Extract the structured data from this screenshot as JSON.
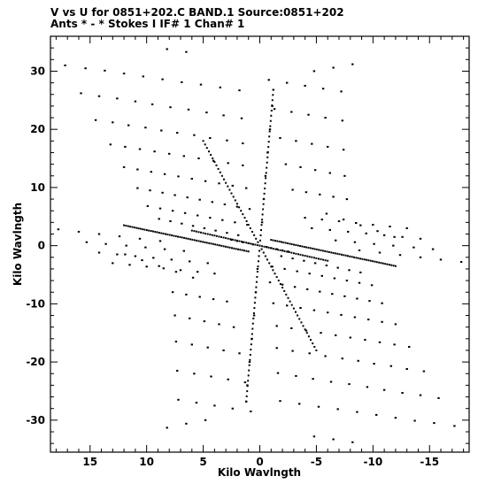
{
  "header": {
    "line1": "V vs U for 0851+202.C BAND.1   Source:0851+202",
    "line2": "Ants * - *    Stokes I   IF# 1   Chan# 1"
  },
  "chart_data": {
    "type": "scatter",
    "xlabel": "Kilo Wavlngth",
    "ylabel": "Kilo Wavlngth",
    "xlim": [
      18.5,
      -18.5
    ],
    "ylim": [
      -35.5,
      36
    ],
    "x_ticks": [
      15,
      10,
      5,
      0,
      -5,
      -10,
      -15
    ],
    "x_tick_labels": [
      "15",
      "10",
      "5",
      "0",
      "-5",
      "-10",
      "-15"
    ],
    "y_ticks": [
      30,
      20,
      10,
      0,
      -10,
      -20,
      -30
    ],
    "y_tick_labels": [
      "30",
      "20",
      "10",
      "0",
      "-10",
      "-20",
      "-30"
    ],
    "grid": false,
    "marker_color": "#000000",
    "points": [
      [
        17.2,
        31.0
      ],
      [
        15.4,
        30.5
      ],
      [
        13.7,
        30.1
      ],
      [
        12.0,
        29.6
      ],
      [
        10.3,
        29.1
      ],
      [
        8.6,
        28.6
      ],
      [
        6.9,
        28.1
      ],
      [
        5.2,
        27.7
      ],
      [
        3.5,
        27.2
      ],
      [
        1.8,
        26.7
      ],
      [
        15.8,
        26.2
      ],
      [
        14.2,
        25.7
      ],
      [
        12.6,
        25.3
      ],
      [
        11.0,
        24.8
      ],
      [
        9.5,
        24.3
      ],
      [
        7.9,
        23.8
      ],
      [
        6.3,
        23.4
      ],
      [
        4.7,
        22.9
      ],
      [
        3.2,
        22.4
      ],
      [
        1.6,
        21.9
      ],
      [
        14.5,
        21.6
      ],
      [
        13.0,
        21.2
      ],
      [
        11.6,
        20.7
      ],
      [
        10.1,
        20.3
      ],
      [
        8.7,
        19.8
      ],
      [
        7.3,
        19.4
      ],
      [
        5.8,
        19.0
      ],
      [
        4.4,
        18.5
      ],
      [
        2.9,
        18.1
      ],
      [
        1.5,
        17.6
      ],
      [
        13.2,
        17.4
      ],
      [
        11.9,
        17.0
      ],
      [
        10.6,
        16.6
      ],
      [
        9.3,
        16.2
      ],
      [
        8.0,
        15.8
      ],
      [
        6.7,
        15.4
      ],
      [
        5.4,
        15.0
      ],
      [
        4.1,
        14.6
      ],
      [
        2.8,
        14.2
      ],
      [
        1.5,
        13.8
      ],
      [
        12.0,
        13.5
      ],
      [
        10.8,
        13.1
      ],
      [
        9.6,
        12.7
      ],
      [
        8.4,
        12.3
      ],
      [
        7.2,
        11.9
      ],
      [
        6.0,
        11.5
      ],
      [
        4.8,
        11.1
      ],
      [
        3.6,
        10.7
      ],
      [
        2.4,
        10.3
      ],
      [
        1.2,
        9.9
      ],
      [
        10.8,
        9.9
      ],
      [
        9.7,
        9.5
      ],
      [
        8.6,
        9.1
      ],
      [
        7.5,
        8.7
      ],
      [
        6.4,
        8.3
      ],
      [
        5.3,
        7.9
      ],
      [
        4.2,
        7.5
      ],
      [
        3.1,
        7.1
      ],
      [
        2.0,
        6.7
      ],
      [
        0.9,
        6.3
      ],
      [
        9.9,
        6.8
      ],
      [
        8.8,
        6.4
      ],
      [
        7.7,
        6.0
      ],
      [
        6.6,
        5.6
      ],
      [
        5.5,
        5.2
      ],
      [
        4.4,
        4.8
      ],
      [
        3.3,
        4.4
      ],
      [
        2.2,
        4.0
      ],
      [
        1.1,
        3.6
      ],
      [
        8.9,
        4.6
      ],
      [
        7.9,
        4.2
      ],
      [
        6.9,
        3.8
      ],
      [
        5.9,
        3.4
      ],
      [
        4.9,
        3.0
      ],
      [
        3.9,
        2.6
      ],
      [
        2.9,
        2.2
      ],
      [
        1.9,
        1.8
      ],
      [
        17.8,
        2.8
      ],
      [
        16.0,
        2.4
      ],
      [
        14.2,
        2.0
      ],
      [
        12.4,
        1.6
      ],
      [
        10.6,
        1.2
      ],
      [
        8.8,
        0.8
      ],
      [
        15.3,
        0.6
      ],
      [
        13.6,
        0.3
      ],
      [
        11.8,
        0.0
      ],
      [
        10.1,
        -0.3
      ],
      [
        8.4,
        -0.6
      ],
      [
        6.7,
        -0.9
      ],
      [
        14.2,
        -1.2
      ],
      [
        12.6,
        -1.5
      ],
      [
        11.0,
        -1.8
      ],
      [
        9.4,
        -2.1
      ],
      [
        7.8,
        -2.4
      ],
      [
        6.2,
        -2.7
      ],
      [
        4.6,
        -3.0
      ],
      [
        13.0,
        -3.0
      ],
      [
        11.5,
        -3.3
      ],
      [
        10.0,
        -3.6
      ],
      [
        8.5,
        -3.9
      ],
      [
        7.0,
        -4.2
      ],
      [
        5.5,
        -4.5
      ],
      [
        4.0,
        -4.8
      ],
      [
        11.9,
        -1.5
      ],
      [
        10.4,
        -2.5
      ],
      [
        8.9,
        -3.5
      ],
      [
        7.4,
        -4.5
      ],
      [
        5.9,
        -5.5
      ],
      [
        7.7,
        -8.0
      ],
      [
        6.5,
        -8.4
      ],
      [
        5.3,
        -8.8
      ],
      [
        4.1,
        -9.2
      ],
      [
        2.9,
        -9.6
      ],
      [
        7.5,
        -12.0
      ],
      [
        6.2,
        -12.5
      ],
      [
        4.9,
        -13.0
      ],
      [
        3.6,
        -13.5
      ],
      [
        2.3,
        -14.0
      ],
      [
        7.4,
        -16.5
      ],
      [
        6.0,
        -17.0
      ],
      [
        4.6,
        -17.5
      ],
      [
        3.2,
        -18.0
      ],
      [
        1.8,
        -18.5
      ],
      [
        7.3,
        -21.5
      ],
      [
        5.8,
        -22.0
      ],
      [
        4.3,
        -22.5
      ],
      [
        2.8,
        -23.0
      ],
      [
        1.3,
        -23.5
      ],
      [
        7.2,
        -26.5
      ],
      [
        5.6,
        -27.0
      ],
      [
        4.0,
        -27.5
      ],
      [
        2.4,
        -28.0
      ],
      [
        0.8,
        -28.5
      ],
      [
        8.2,
        -31.3
      ],
      [
        6.5,
        -30.6
      ],
      [
        4.8,
        -30.0
      ],
      [
        -8.2,
        31.2
      ],
      [
        -6.5,
        30.6
      ],
      [
        -4.8,
        30.0
      ],
      [
        -7.2,
        26.5
      ],
      [
        -5.6,
        27.0
      ],
      [
        -4.0,
        27.5
      ],
      [
        -2.4,
        28.0
      ],
      [
        -0.8,
        28.5
      ],
      [
        -7.3,
        21.5
      ],
      [
        -5.8,
        22.0
      ],
      [
        -4.3,
        22.5
      ],
      [
        -2.8,
        23.0
      ],
      [
        -1.3,
        23.5
      ],
      [
        -7.4,
        16.5
      ],
      [
        -6.0,
        17.0
      ],
      [
        -4.6,
        17.5
      ],
      [
        -3.2,
        18.0
      ],
      [
        -1.8,
        18.5
      ],
      [
        -7.5,
        12.0
      ],
      [
        -6.2,
        12.5
      ],
      [
        -4.9,
        13.0
      ],
      [
        -3.6,
        13.5
      ],
      [
        -2.3,
        14.0
      ],
      [
        -7.7,
        8.0
      ],
      [
        -6.5,
        8.4
      ],
      [
        -5.3,
        8.8
      ],
      [
        -4.1,
        9.2
      ],
      [
        -2.9,
        9.6
      ],
      [
        -17.8,
        -2.8
      ],
      [
        -16.0,
        -2.4
      ],
      [
        -14.2,
        -2.0
      ],
      [
        -12.4,
        -1.6
      ],
      [
        -10.6,
        -1.2
      ],
      [
        -8.8,
        -0.8
      ],
      [
        -15.3,
        -0.6
      ],
      [
        -13.6,
        -0.3
      ],
      [
        -11.8,
        0.0
      ],
      [
        -10.1,
        0.3
      ],
      [
        -8.4,
        0.6
      ],
      [
        -6.7,
        0.9
      ],
      [
        -14.2,
        1.2
      ],
      [
        -12.6,
        1.5
      ],
      [
        -11.0,
        1.8
      ],
      [
        -9.4,
        2.1
      ],
      [
        -7.8,
        2.4
      ],
      [
        -6.2,
        2.7
      ],
      [
        -4.6,
        3.0
      ],
      [
        -13.0,
        3.0
      ],
      [
        -11.5,
        3.3
      ],
      [
        -10.0,
        3.6
      ],
      [
        -8.5,
        3.9
      ],
      [
        -7.0,
        4.2
      ],
      [
        -5.5,
        4.5
      ],
      [
        -4.0,
        4.8
      ],
      [
        -11.9,
        1.5
      ],
      [
        -10.4,
        2.5
      ],
      [
        -8.9,
        3.5
      ],
      [
        -7.4,
        4.5
      ],
      [
        -5.9,
        5.5
      ],
      [
        -8.9,
        -4.6
      ],
      [
        -7.9,
        -4.2
      ],
      [
        -6.9,
        -3.8
      ],
      [
        -5.9,
        -3.4
      ],
      [
        -4.9,
        -3.0
      ],
      [
        -3.9,
        -2.6
      ],
      [
        -2.9,
        -2.2
      ],
      [
        -1.9,
        -1.8
      ],
      [
        -9.9,
        -6.8
      ],
      [
        -8.8,
        -6.4
      ],
      [
        -7.7,
        -6.0
      ],
      [
        -6.6,
        -5.6
      ],
      [
        -5.5,
        -5.2
      ],
      [
        -4.4,
        -4.8
      ],
      [
        -3.3,
        -4.4
      ],
      [
        -2.2,
        -4.0
      ],
      [
        -1.1,
        -3.6
      ],
      [
        -10.8,
        -9.9
      ],
      [
        -9.7,
        -9.5
      ],
      [
        -8.6,
        -9.1
      ],
      [
        -7.5,
        -8.7
      ],
      [
        -6.4,
        -8.3
      ],
      [
        -5.3,
        -7.9
      ],
      [
        -4.2,
        -7.5
      ],
      [
        -3.1,
        -7.1
      ],
      [
        -2.0,
        -6.7
      ],
      [
        -0.9,
        -6.3
      ],
      [
        -12.0,
        -13.5
      ],
      [
        -10.8,
        -13.1
      ],
      [
        -9.6,
        -12.7
      ],
      [
        -8.4,
        -12.3
      ],
      [
        -7.2,
        -11.9
      ],
      [
        -6.0,
        -11.5
      ],
      [
        -4.8,
        -11.1
      ],
      [
        -3.6,
        -10.7
      ],
      [
        -2.4,
        -10.3
      ],
      [
        -1.2,
        -9.9
      ],
      [
        -13.2,
        -17.4
      ],
      [
        -11.9,
        -17.0
      ],
      [
        -10.6,
        -16.6
      ],
      [
        -9.3,
        -16.2
      ],
      [
        -8.0,
        -15.8
      ],
      [
        -6.7,
        -15.4
      ],
      [
        -5.4,
        -15.0
      ],
      [
        -4.1,
        -14.6
      ],
      [
        -2.8,
        -14.2
      ],
      [
        -1.5,
        -13.8
      ],
      [
        -14.5,
        -21.6
      ],
      [
        -13.0,
        -21.2
      ],
      [
        -11.6,
        -20.7
      ],
      [
        -10.1,
        -20.3
      ],
      [
        -8.7,
        -19.8
      ],
      [
        -7.3,
        -19.4
      ],
      [
        -5.8,
        -19.0
      ],
      [
        -4.4,
        -18.5
      ],
      [
        -2.9,
        -18.1
      ],
      [
        -1.5,
        -17.6
      ],
      [
        -15.8,
        -26.2
      ],
      [
        -14.2,
        -25.7
      ],
      [
        -12.6,
        -25.3
      ],
      [
        -11.0,
        -24.8
      ],
      [
        -9.5,
        -24.3
      ],
      [
        -7.9,
        -23.8
      ],
      [
        -6.3,
        -23.4
      ],
      [
        -4.7,
        -22.9
      ],
      [
        -3.2,
        -22.4
      ],
      [
        -1.6,
        -21.9
      ],
      [
        -17.2,
        -31.0
      ],
      [
        -15.4,
        -30.5
      ],
      [
        -13.7,
        -30.1
      ],
      [
        -12.0,
        -29.6
      ],
      [
        -10.3,
        -29.1
      ],
      [
        -8.6,
        -28.6
      ],
      [
        -6.9,
        -28.1
      ],
      [
        -5.2,
        -27.7
      ],
      [
        -3.5,
        -27.2
      ],
      [
        -1.8,
        -26.7
      ],
      [
        -8.2,
        -33.8
      ],
      [
        -6.5,
        -33.3
      ],
      [
        -4.8,
        -32.8
      ],
      [
        8.2,
        33.8
      ],
      [
        6.5,
        33.3
      ],
      [
        2.5,
        1.0
      ],
      [
        2.0,
        0.8
      ],
      [
        1.5,
        0.6
      ],
      [
        1.0,
        0.4
      ],
      [
        0.6,
        0.2
      ],
      [
        -0.6,
        -0.2
      ],
      [
        -1.0,
        -0.4
      ],
      [
        -1.5,
        -0.6
      ],
      [
        -2.0,
        -0.8
      ],
      [
        -2.5,
        -1.0
      ],
      [
        -1.2,
        26.8
      ],
      [
        -1.1,
        24.0
      ],
      [
        -0.9,
        20.0
      ],
      [
        -0.7,
        16.0
      ],
      [
        -0.5,
        12.0
      ],
      [
        -0.35,
        8.0
      ],
      [
        -0.2,
        4.0
      ],
      [
        1.2,
        -26.8
      ],
      [
        1.1,
        -24.0
      ],
      [
        0.9,
        -20.0
      ],
      [
        0.7,
        -16.0
      ],
      [
        0.5,
        -12.0
      ],
      [
        0.35,
        -8.0
      ],
      [
        0.2,
        -4.0
      ]
    ],
    "streaks": [
      {
        "from": [
          1.2,
          -26.8
        ],
        "to": [
          -1.2,
          26.8
        ]
      },
      {
        "from": [
          6.0,
          2.6
        ],
        "to": [
          -6.0,
          -2.6
        ]
      },
      {
        "from": [
          5.0,
          18.0
        ],
        "to": [
          -5.0,
          -18.0
        ]
      },
      {
        "from": [
          -1.0,
          1.0
        ],
        "to": [
          -12.0,
          -3.5
        ]
      },
      {
        "from": [
          1.0,
          -1.0
        ],
        "to": [
          12.0,
          3.5
        ]
      }
    ]
  }
}
